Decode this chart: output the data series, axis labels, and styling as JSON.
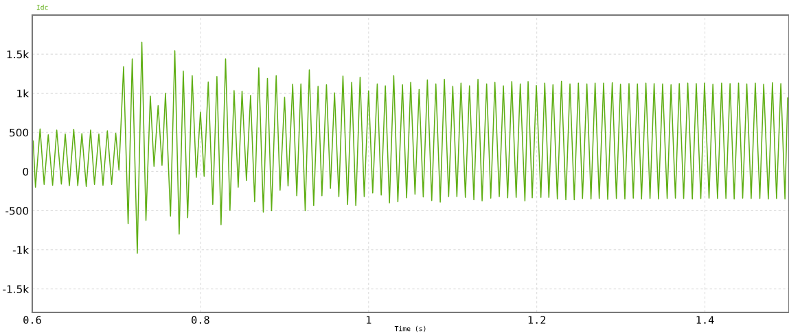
{
  "chart_data": {
    "type": "line",
    "xlabel": "Time (s)",
    "xlim": [
      0.6,
      1.5
    ],
    "xticks": [
      0.6,
      0.8,
      1,
      1.2,
      1.4
    ],
    "ylim": [
      -1800,
      2000
    ],
    "yticks": [
      {
        "value": -1500,
        "label": "-1.5k"
      },
      {
        "value": -1000,
        "label": "-1k"
      },
      -500,
      0,
      500,
      {
        "value": 1000,
        "label": "1k"
      },
      {
        "value": 1500,
        "label": "1.5k"
      }
    ],
    "grid": true,
    "legend": "top left",
    "marker": "none",
    "line_style": "solid",
    "series": [
      {
        "name": "Idc",
        "color": "#5fae14",
        "x": [
          0.6011,
          0.6038,
          0.6093,
          0.6141,
          0.619,
          0.6242,
          0.6291,
          0.6346,
          0.6392,
          0.6441,
          0.6493,
          0.6541,
          0.659,
          0.6642,
          0.6694,
          0.674,
          0.6792,
          0.6841,
          0.6893,
          0.6944,
          0.6993,
          0.7031,
          0.7086,
          0.714,
          0.7189,
          0.7249,
          0.7303,
          0.7352,
          0.7404,
          0.7448,
          0.7497,
          0.7543,
          0.7584,
          0.7644,
          0.7695,
          0.7747,
          0.7796,
          0.7848,
          0.7902,
          0.7951,
          0.8,
          0.8044,
          0.8093,
          0.8147,
          0.8196,
          0.8245,
          0.8299,
          0.8351,
          0.84,
          0.8449,
          0.8495,
          0.8547,
          0.8596,
          0.8645,
          0.8694,
          0.8748,
          0.8797,
          0.8846,
          0.8901,
          0.8947,
          0.9001,
          0.9042,
          0.9097,
          0.9146,
          0.9195,
          0.9246,
          0.9295,
          0.9347,
          0.9399,
          0.9445,
          0.9499,
          0.9546,
          0.9595,
          0.9646,
          0.9695,
          0.975,
          0.9799,
          0.9848,
          0.9899,
          0.9948,
          1.0,
          1.0049,
          1.0103,
          1.015,
          1.0199,
          1.0248,
          1.0299,
          1.0348,
          1.0403,
          1.0452,
          1.0501,
          1.0552,
          1.0601,
          1.065,
          1.0699,
          1.0751,
          1.08,
          1.0852,
          1.0901,
          1.0952,
          1.1001,
          1.105,
          1.1099,
          1.1151,
          1.12,
          1.1252,
          1.1301,
          1.135,
          1.1404,
          1.1453,
          1.1502,
          1.1554,
          1.1603,
          1.1654,
          1.1703,
          1.1755,
          1.1804,
          1.1859,
          1.1897,
          1.1946,
          1.1995,
          1.2049,
          1.2095,
          1.2144,
          1.2193,
          1.2245,
          1.2294,
          1.2346,
          1.2395,
          1.2446,
          1.2495,
          1.2544,
          1.2596,
          1.2645,
          1.2694,
          1.2743,
          1.2795,
          1.2844,
          1.2898,
          1.2947,
          1.2996,
          1.3048,
          1.3097,
          1.3148,
          1.3197,
          1.3246,
          1.3298,
          1.3347,
          1.3396,
          1.3448,
          1.3497,
          1.3551,
          1.3597,
          1.3649,
          1.3695,
          1.3747,
          1.3796,
          1.385,
          1.3897,
          1.3951,
          1.3995,
          1.4049,
          1.4095,
          1.415,
          1.4199,
          1.425,
          1.4299,
          1.4348,
          1.44,
          1.4449,
          1.4498,
          1.455,
          1.4599,
          1.4653,
          1.4699,
          1.4754,
          1.4803,
          1.4852,
          1.4903,
          1.4952,
          1.4984
        ],
        "values": [
          390,
          -200,
          545,
          -165,
          470,
          -175,
          530,
          -160,
          480,
          -180,
          540,
          -180,
          485,
          -190,
          530,
          -165,
          480,
          -175,
          520,
          -165,
          490,
          20,
          1340,
          -665,
          1440,
          -1045,
          1655,
          -625,
          965,
          65,
          845,
          80,
          1000,
          -570,
          1545,
          -800,
          1285,
          -590,
          1225,
          -75,
          760,
          -60,
          1145,
          -420,
          1215,
          -680,
          1440,
          -495,
          1035,
          -200,
          1025,
          -115,
          970,
          -385,
          1325,
          -520,
          1190,
          -500,
          1225,
          -240,
          950,
          -185,
          1115,
          -310,
          1120,
          -500,
          1300,
          -435,
          1090,
          -310,
          1110,
          -215,
          1005,
          -320,
          1220,
          -420,
          1140,
          -435,
          1205,
          -320,
          1030,
          -275,
          1120,
          -300,
          1095,
          -400,
          1225,
          -385,
          1110,
          -335,
          1140,
          -290,
          1050,
          -325,
          1170,
          -370,
          1120,
          -390,
          1180,
          -320,
          1090,
          -320,
          1130,
          -330,
          1095,
          -360,
          1180,
          -375,
          1120,
          -340,
          1140,
          -320,
          1095,
          -335,
          1150,
          -330,
          1120,
          -375,
          1150,
          -335,
          1100,
          -330,
          1130,
          -330,
          1110,
          -350,
          1155,
          -360,
          1120,
          -360,
          1130,
          -345,
          1120,
          -350,
          1130,
          -345,
          1130,
          -355,
          1135,
          -345,
          1115,
          -350,
          1125,
          -340,
          1120,
          -350,
          1130,
          -345,
          1125,
          -350,
          1120,
          -345,
          1110,
          -340,
          1125,
          -345,
          1130,
          -350,
          1125,
          -345,
          1130,
          -340,
          1115,
          -345,
          1130,
          -345,
          1125,
          -350,
          1130,
          -340,
          1120,
          -345,
          1130,
          -345,
          1115,
          -350,
          1135,
          -345,
          1125,
          -350,
          940
        ]
      }
    ]
  }
}
